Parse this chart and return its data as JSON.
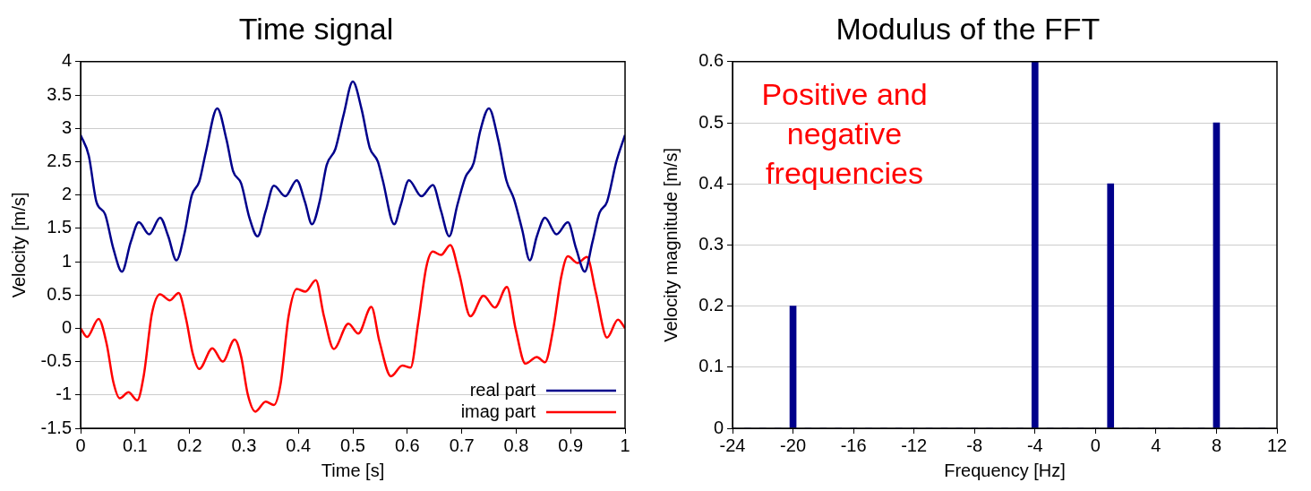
{
  "chart_data": [
    {
      "type": "line",
      "title": "Time signal",
      "xlabel": "Time [s]",
      "ylabel": "Velocity [m/s]",
      "xlim": [
        0,
        1
      ],
      "xticks": [
        0,
        0.1,
        0.2,
        0.3,
        0.4,
        0.5,
        0.6,
        0.7,
        0.8,
        0.9,
        1
      ],
      "ylim": [
        -1.5,
        4
      ],
      "yticks": [
        -1.5,
        -1,
        -0.5,
        0,
        0.5,
        1,
        1.5,
        2,
        2.5,
        3,
        3.5,
        4
      ],
      "grid": "y",
      "legend": "bottom right",
      "marker": "none",
      "line_style": "solid",
      "series": [
        {
          "name": "real part",
          "color": "#00008b",
          "x": [
            0,
            0.015,
            0.029,
            0.045,
            0.06,
            0.076,
            0.092,
            0.107,
            0.126,
            0.146,
            0.161,
            0.176,
            0.191,
            0.204,
            0.218,
            0.23,
            0.251,
            0.268,
            0.28,
            0.295,
            0.31,
            0.325,
            0.34,
            0.355,
            0.376,
            0.397,
            0.412,
            0.425,
            0.439,
            0.452,
            0.468,
            0.483,
            0.5,
            0.516,
            0.531,
            0.546,
            0.555,
            0.576,
            0.588,
            0.603,
            0.626,
            0.647,
            0.662,
            0.677,
            0.692,
            0.707,
            0.722,
            0.734,
            0.75,
            0.767,
            0.782,
            0.796,
            0.811,
            0.825,
            0.838,
            0.853,
            0.874,
            0.895,
            0.91,
            0.926,
            0.94,
            0.953,
            0.967,
            0.984,
            1
          ],
          "values": [
            2.9,
            2.59,
            1.9,
            1.71,
            1.2,
            0.85,
            1.29,
            1.59,
            1.41,
            1.66,
            1.38,
            1.02,
            1.43,
            1.99,
            2.2,
            2.64,
            3.3,
            2.83,
            2.36,
            2.17,
            1.66,
            1.38,
            1.76,
            2.14,
            1.98,
            2.22,
            1.9,
            1.56,
            1.9,
            2.45,
            2.69,
            3.2,
            3.7,
            3.29,
            2.71,
            2.5,
            2.22,
            1.56,
            1.85,
            2.22,
            1.98,
            2.15,
            1.76,
            1.38,
            1.85,
            2.27,
            2.48,
            2.96,
            3.3,
            2.83,
            2.22,
            1.94,
            1.48,
            1.02,
            1.38,
            1.66,
            1.41,
            1.59,
            1.2,
            0.85,
            1.29,
            1.73,
            1.9,
            2.5,
            2.9
          ]
        },
        {
          "name": "imag part",
          "color": "#ff0000",
          "x": [
            0,
            0.012,
            0.033,
            0.048,
            0.06,
            0.072,
            0.088,
            0.104,
            0.116,
            0.131,
            0.146,
            0.164,
            0.18,
            0.194,
            0.206,
            0.218,
            0.242,
            0.261,
            0.283,
            0.295,
            0.307,
            0.321,
            0.34,
            0.355,
            0.367,
            0.382,
            0.397,
            0.413,
            0.432,
            0.447,
            0.465,
            0.492,
            0.51,
            0.534,
            0.549,
            0.57,
            0.591,
            0.606,
            0.62,
            0.635,
            0.647,
            0.662,
            0.679,
            0.695,
            0.716,
            0.74,
            0.761,
            0.783,
            0.799,
            0.817,
            0.838,
            0.853,
            0.868,
            0.883,
            0.895,
            0.913,
            0.93,
            0.946,
            0.967,
            0.987,
            1
          ],
          "values": [
            0,
            -0.13,
            0.14,
            -0.24,
            -0.8,
            -1.05,
            -0.96,
            -1.08,
            -0.71,
            0.22,
            0.51,
            0.42,
            0.53,
            0.13,
            -0.38,
            -0.61,
            -0.3,
            -0.5,
            -0.17,
            -0.43,
            -0.99,
            -1.25,
            -1.1,
            -1.15,
            -0.85,
            0.18,
            0.59,
            0.55,
            0.72,
            0.18,
            -0.31,
            0.07,
            -0.08,
            0.32,
            -0.2,
            -0.72,
            -0.56,
            -0.59,
            0.08,
            0.92,
            1.15,
            1.1,
            1.25,
            0.83,
            0.18,
            0.49,
            0.31,
            0.62,
            -0.01,
            -0.53,
            -0.43,
            -0.51,
            -0.01,
            0.78,
            1.08,
            0.98,
            1.07,
            0.55,
            -0.14,
            0.13,
            0
          ]
        }
      ]
    },
    {
      "type": "bar",
      "title": "Modulus of the FFT",
      "xlabel": "Frequency [Hz]",
      "ylabel": "Velocity magnitude [m/s]",
      "xlim": [
        -24,
        12
      ],
      "xticks": [
        -24,
        -20,
        -16,
        -12,
        -8,
        -4,
        0,
        4,
        8,
        12
      ],
      "ylim": [
        0,
        0.6
      ],
      "yticks": [
        0,
        0.1,
        0.2,
        0.3,
        0.4,
        0.5,
        0.6
      ],
      "grid": "y",
      "color": "#00008b",
      "annotations": [
        "Positive and\nnegative\nfrequencies"
      ],
      "x": [
        -24,
        -23,
        -22,
        -21,
        -20,
        -19,
        -18,
        -17,
        -16,
        -15,
        -14,
        -13,
        -12,
        -11,
        -10,
        -9,
        -8,
        -7,
        -6,
        -5,
        -4,
        -3,
        -2,
        -1,
        0,
        1,
        2,
        3,
        4,
        5,
        6,
        7,
        8,
        9,
        10,
        11
      ],
      "values": [
        0,
        0,
        0,
        0,
        0.2,
        0,
        0,
        0,
        0,
        0,
        0,
        0,
        0,
        0,
        0,
        0,
        0,
        0,
        0,
        0,
        0.6,
        0,
        0,
        0,
        0,
        0.4,
        0,
        0,
        0,
        0,
        0,
        0,
        0.5,
        0,
        0,
        0
      ]
    }
  ]
}
